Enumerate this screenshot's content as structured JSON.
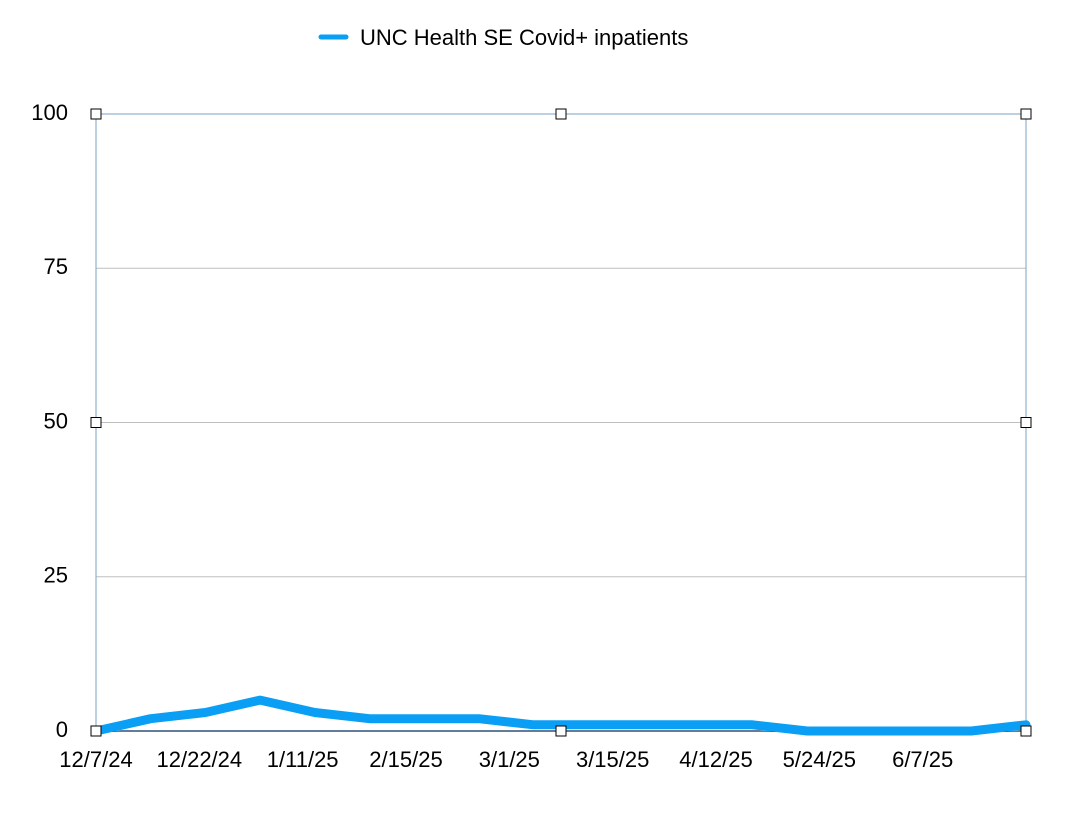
{
  "chart_data": {
    "type": "line",
    "legend": {
      "position": "top-center"
    },
    "series": [
      {
        "name": "UNC Health SE Covid+ inpatients",
        "color": "#0a9ff5",
        "values": [
          0,
          2,
          3,
          5,
          3,
          2,
          2,
          2,
          1,
          1,
          1,
          1,
          1,
          0,
          0,
          0,
          0,
          1
        ]
      }
    ],
    "x_tick_labels": [
      "12/7/24",
      "12/22/24",
      "1/11/25",
      "2/15/25",
      "3/1/25",
      "3/15/25",
      "4/12/25",
      "5/24/25",
      "6/7/25"
    ],
    "y_ticks": [
      0,
      25,
      50,
      75,
      100
    ],
    "ylim": [
      0,
      100
    ],
    "grid": true
  }
}
